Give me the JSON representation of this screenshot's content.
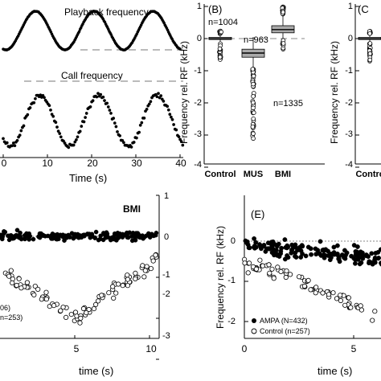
{
  "chart_data": [
    {
      "panel": "A",
      "type": "scatter",
      "title": "",
      "annotations": [
        "Playback frequency",
        "Call frequency"
      ],
      "xlabel": "Time (s)",
      "ylabel": "",
      "xlim": [
        0,
        41
      ],
      "x_ticks": [
        "0",
        "10",
        "20",
        "30",
        "40"
      ],
      "grid": false,
      "series": [
        {
          "label": "Playback frequency",
          "period_s": 13.3,
          "amplitude_rel": 1.0,
          "style": "line"
        },
        {
          "label": "Call frequency",
          "period_s": 13.3,
          "amplitude_rel": 1.0,
          "style": "dots"
        }
      ]
    },
    {
      "panel": "B",
      "type": "box",
      "title": "(B)",
      "xlabel": "",
      "ylabel": "Frequency rel. RF (kHz)",
      "ylim": [
        -4,
        1
      ],
      "y_ticks": [
        "1",
        "0",
        "-1",
        "-2",
        "-3",
        "-4"
      ],
      "categories": [
        "Control",
        "MUS",
        "BMI"
      ],
      "n_labels": [
        "n=1004",
        "n=963",
        "n=1335"
      ],
      "boxes": [
        {
          "category": "Control",
          "median": 0.0,
          "q1": -0.03,
          "q3": 0.04,
          "whisker_low": -0.15,
          "whisker_high": 0.18
        },
        {
          "category": "MUS",
          "median": -0.45,
          "q1": -0.58,
          "q3": -0.33,
          "whisker_low": -0.95,
          "whisker_high": 0.05
        },
        {
          "category": "BMI",
          "median": 0.28,
          "q1": 0.18,
          "q3": 0.4,
          "whisker_low": 0.0,
          "whisker_high": 0.75
        }
      ]
    },
    {
      "panel": "C",
      "type": "box",
      "title": "(C",
      "xlabel": "",
      "ylabel": "Frequency rel. RF (kHz)",
      "ylim": [
        -4,
        1
      ],
      "y_ticks": [
        "1",
        "0",
        "-1",
        "-2",
        "-3",
        "-4"
      ],
      "categories": [
        "Control"
      ],
      "boxes": [
        {
          "category": "Control",
          "median": 0.0,
          "q1": -0.03,
          "q3": 0.04,
          "whisker_low": -0.15,
          "whisker_high": 0.18
        }
      ]
    },
    {
      "panel": "D",
      "type": "scatter",
      "title": "BMI",
      "xlabel": "time (s)",
      "ylabel": "",
      "xlim": [
        0,
        10
      ],
      "ylim": [
        -3,
        1
      ],
      "x_ticks": [
        "5",
        "10"
      ],
      "y_ticks": [
        "1",
        "0",
        "-1",
        "-2",
        "-3"
      ],
      "legend_text": [
        "06)",
        "n=253)"
      ],
      "series": [
        {
          "label": "BMI (filled)",
          "mean_level": 0.0
        },
        {
          "label": "Control (open)",
          "min_level": -2.0,
          "min_at_s": 5.0
        }
      ]
    },
    {
      "panel": "E",
      "type": "scatter",
      "title": "(E)",
      "xlabel": "time (s)",
      "ylabel": "Frequency rel. RF (kHz)",
      "xlim": [
        0,
        7
      ],
      "ylim": [
        -2.5,
        0.3
      ],
      "x_ticks": [
        "0",
        "5"
      ],
      "y_ticks": [
        "0",
        "-1",
        "-2"
      ],
      "legend": [
        {
          "marker": "filled",
          "text": "AMPA (N=432)"
        },
        {
          "marker": "open",
          "text": "Control (n=257)"
        }
      ],
      "legend_position": "bottom-left"
    }
  ]
}
